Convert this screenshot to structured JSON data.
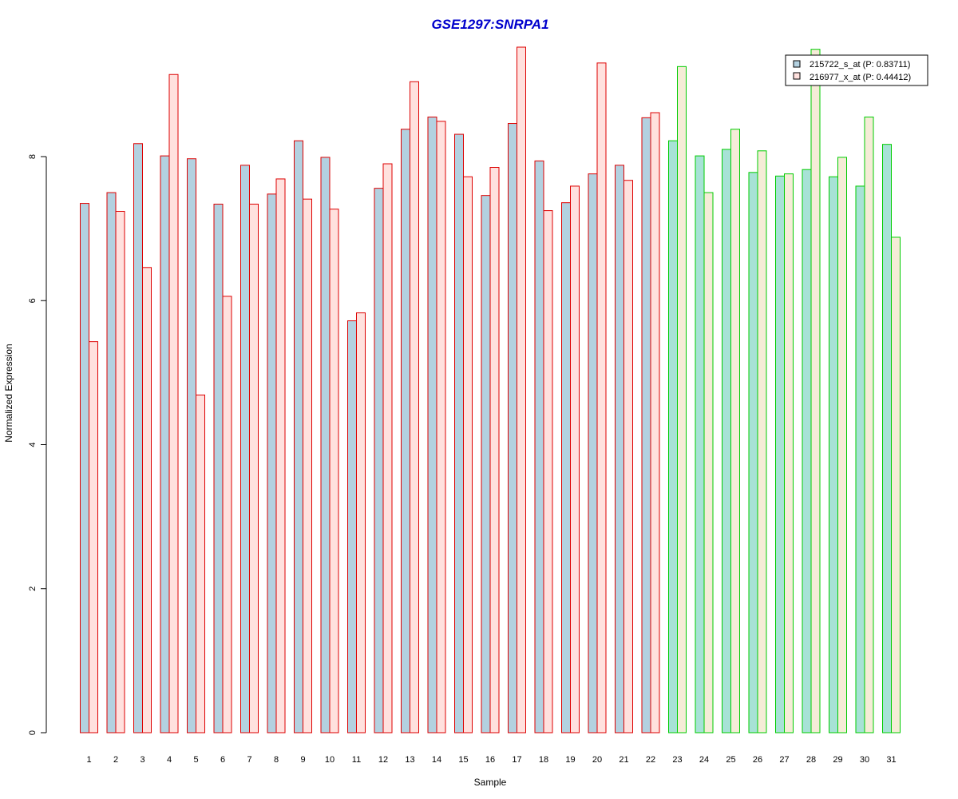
{
  "chart_data": {
    "type": "bar",
    "title": "GSE1297:SNRPA1",
    "xlabel": "Sample",
    "ylabel": "Normalized Expression",
    "ylim": [
      0,
      9.6
    ],
    "yticks": [
      0,
      2,
      4,
      6,
      8
    ],
    "grid": false,
    "legend_position": "top-right",
    "categories": [
      "1",
      "2",
      "3",
      "4",
      "5",
      "6",
      "7",
      "8",
      "9",
      "10",
      "11",
      "12",
      "13",
      "14",
      "15",
      "16",
      "17",
      "18",
      "19",
      "20",
      "21",
      "22",
      "23",
      "24",
      "25",
      "26",
      "27",
      "28",
      "29",
      "30",
      "31"
    ],
    "groups": [
      {
        "samples": "1-22",
        "border_color": "#dd0000"
      },
      {
        "samples": "23-31",
        "border_color": "#00cc00"
      }
    ],
    "series": [
      {
        "name": "215722_s_at (P: 0.83711)",
        "fill_group1": "#b3d1e0",
        "fill_group2": "#a7e2d6",
        "values": [
          7.35,
          7.5,
          8.18,
          8.01,
          7.97,
          7.34,
          7.88,
          7.48,
          8.22,
          7.99,
          5.72,
          7.56,
          8.38,
          8.55,
          8.31,
          7.46,
          8.46,
          7.94,
          7.36,
          7.76,
          7.88,
          8.54,
          8.22,
          8.01,
          8.1,
          7.78,
          7.73,
          7.82,
          7.72,
          7.59,
          8.17
        ]
      },
      {
        "name": "216977_x_at (P: 0.44412)",
        "fill_group1": "#ffe1de",
        "fill_group2": "#f5ecd7",
        "values": [
          5.43,
          7.24,
          6.46,
          9.14,
          4.69,
          6.06,
          7.34,
          7.69,
          7.41,
          7.27,
          5.83,
          7.9,
          9.04,
          8.49,
          7.72,
          7.85,
          9.52,
          7.25,
          7.59,
          9.3,
          7.67,
          8.61,
          9.25,
          7.5,
          8.38,
          8.08,
          7.76,
          9.49,
          7.99,
          8.55,
          6.88
        ]
      }
    ]
  }
}
